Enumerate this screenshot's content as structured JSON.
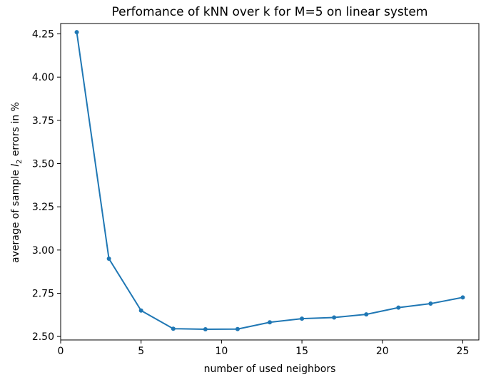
{
  "chart_data": {
    "type": "line",
    "title": "Perfomance of kNN over k for M=5 on linear system",
    "xlabel": "number of used neighbors",
    "ylabel_parts": [
      "average of sample ",
      "l",
      "2",
      " errors in %"
    ],
    "xlim": [
      0,
      26
    ],
    "ylim": [
      2.48,
      4.31
    ],
    "x_ticks": [
      0,
      5,
      10,
      15,
      20,
      25
    ],
    "y_ticks": [
      2.5,
      2.75,
      3.0,
      3.25,
      3.5,
      3.75,
      4.0,
      4.25
    ],
    "y_tick_labels": [
      "2.50",
      "2.75",
      "3.00",
      "3.25",
      "3.50",
      "3.75",
      "4.00",
      "4.25"
    ],
    "grid": false,
    "series": [
      {
        "color": "#1f77b4",
        "marker": "circle",
        "x": [
          1,
          3,
          5,
          7,
          9,
          11,
          13,
          15,
          17,
          19,
          21,
          23,
          25
        ],
        "y": [
          4.26,
          2.95,
          2.65,
          2.545,
          2.542,
          2.543,
          2.582,
          2.603,
          2.61,
          2.628,
          2.667,
          2.69,
          2.726
        ]
      }
    ]
  }
}
